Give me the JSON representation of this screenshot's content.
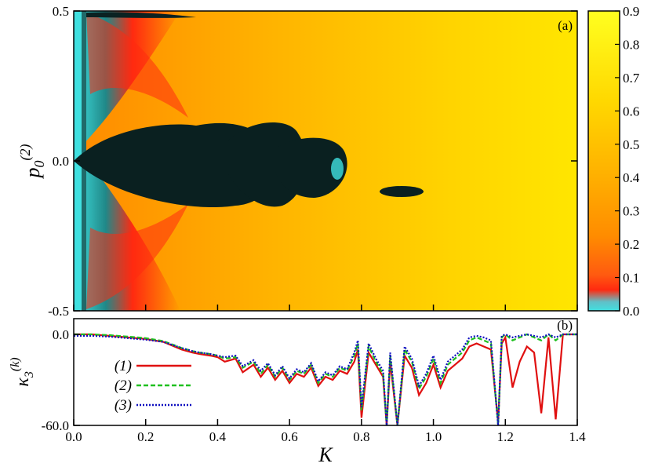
{
  "chart_data": [
    {
      "type": "heatmap",
      "panel_label": "(a)",
      "xlim": [
        0.0,
        1.4
      ],
      "ylim": [
        -0.5,
        0.5
      ],
      "ylabel_main": "p",
      "ylabel_sub": "0",
      "ylabel_sup": "(2)",
      "yticks": [
        "-0.5",
        "0.0",
        "0.5"
      ],
      "yticks_values": [
        -0.5,
        0.0,
        0.5
      ],
      "colorbar": {
        "range": [
          0.0,
          0.9
        ],
        "ticks": [
          "0.0",
          "0.1",
          "0.2",
          "0.3",
          "0.4",
          "0.5",
          "0.6",
          "0.7",
          "0.8",
          "0.9"
        ],
        "tick_values": [
          0.0,
          0.1,
          0.2,
          0.3,
          0.4,
          0.5,
          0.6,
          0.7,
          0.8,
          0.9
        ],
        "colors": [
          "#40e0e0",
          "#ff2a10",
          "#ff8c00",
          "#ffb400",
          "#ffd800",
          "#ffff20"
        ]
      }
    },
    {
      "type": "line",
      "panel_label": "(b)",
      "xlabel": "K",
      "ylabel_main": "κ",
      "ylabel_sub": "3",
      "ylabel_sup": "(k)",
      "xlim": [
        0.0,
        1.4
      ],
      "ylim": [
        -60,
        0
      ],
      "xticks": [
        "0.0",
        "0.2",
        "0.4",
        "0.6",
        "0.8",
        "1.0",
        "1.2",
        "1.4"
      ],
      "xticks_values": [
        0.0,
        0.2,
        0.4,
        0.6,
        0.8,
        1.0,
        1.2,
        1.4
      ],
      "yticks": [
        "0.0",
        "-60.0"
      ],
      "yticks_values": [
        0,
        -60
      ],
      "x": [
        0.0,
        0.05,
        0.1,
        0.15,
        0.2,
        0.25,
        0.3,
        0.33,
        0.35,
        0.38,
        0.4,
        0.42,
        0.45,
        0.47,
        0.5,
        0.52,
        0.54,
        0.56,
        0.58,
        0.6,
        0.62,
        0.64,
        0.66,
        0.68,
        0.7,
        0.72,
        0.74,
        0.76,
        0.78,
        0.79,
        0.8,
        0.82,
        0.84,
        0.86,
        0.87,
        0.88,
        0.9,
        0.92,
        0.94,
        0.96,
        0.98,
        1.0,
        1.02,
        1.04,
        1.06,
        1.08,
        1.1,
        1.12,
        1.14,
        1.16,
        1.18,
        1.19,
        1.2,
        1.22,
        1.24,
        1.26,
        1.28,
        1.3,
        1.32,
        1.34,
        1.36,
        1.38,
        1.4
      ],
      "series": [
        {
          "name": "(1)",
          "color": "#e01010",
          "dash": "solid",
          "values": [
            0,
            0,
            -1,
            -2,
            -3,
            -5,
            -10,
            -12,
            -13,
            -14,
            -15,
            -18,
            -16,
            -25,
            -20,
            -28,
            -22,
            -30,
            -24,
            -32,
            -26,
            -28,
            -22,
            -34,
            -28,
            -30,
            -24,
            -26,
            -18,
            -10,
            -55,
            -12,
            -20,
            -28,
            -60,
            -18,
            -60,
            -14,
            -22,
            -40,
            -32,
            -20,
            -35,
            -24,
            -20,
            -16,
            -8,
            -6,
            -8,
            -10,
            -58,
            -6,
            -2,
            -35,
            -18,
            -8,
            -12,
            -52,
            -2,
            -56,
            0,
            0,
            0
          ]
        },
        {
          "name": "(2)",
          "color": "#20c020",
          "dash": "dashed",
          "values": [
            0,
            0,
            -0.5,
            -1.5,
            -2.5,
            -4.5,
            -9,
            -11,
            -12,
            -13,
            -14,
            -16,
            -15,
            -22,
            -18,
            -26,
            -20,
            -28,
            -22,
            -30,
            -24,
            -26,
            -20,
            -32,
            -26,
            -28,
            -22,
            -24,
            -14,
            -6,
            -50,
            -8,
            -18,
            -26,
            -60,
            -14,
            -60,
            -10,
            -18,
            -36,
            -28,
            -16,
            -32,
            -20,
            -16,
            -12,
            -4,
            -2,
            -4,
            -6,
            -60,
            -2,
            0,
            -4,
            -2,
            0,
            -2,
            -4,
            0,
            -4,
            0,
            0,
            0
          ]
        },
        {
          "name": "(3)",
          "color": "#1010c0",
          "dash": "dotted",
          "values": [
            -1,
            -1,
            -1.5,
            -2.5,
            -3.5,
            -5,
            -9,
            -11,
            -12,
            -13,
            -14,
            -15,
            -14,
            -21,
            -17,
            -24,
            -19,
            -27,
            -21,
            -29,
            -23,
            -25,
            -19,
            -31,
            -25,
            -27,
            -21,
            -23,
            -12,
            -4,
            -48,
            -6,
            -16,
            -24,
            -60,
            -12,
            -60,
            -8,
            -16,
            -34,
            -26,
            -14,
            -30,
            -18,
            -14,
            -10,
            -2,
            -1,
            -2,
            -4,
            -60,
            -1,
            0,
            -2,
            -1,
            0,
            -1,
            -2,
            0,
            -2,
            0,
            0,
            0
          ]
        }
      ]
    }
  ]
}
